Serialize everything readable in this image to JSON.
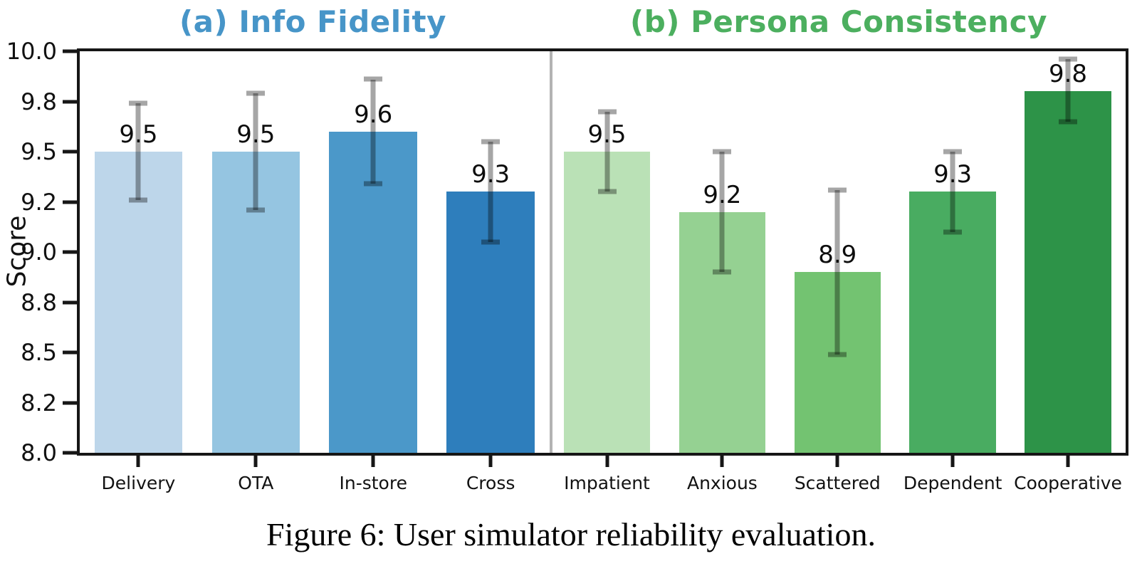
{
  "chart_data": {
    "type": "bar",
    "ylabel": "Score",
    "ylim": [
      8.0,
      10.0
    ],
    "grid": false,
    "legend": false,
    "yticks": {
      "values": [
        10.0,
        9.75,
        9.5,
        9.25,
        9.0,
        8.75,
        8.5,
        8.25,
        8.0
      ],
      "labels": [
        "10.0",
        "9.8",
        "9.5",
        "9.2",
        "9.0",
        "8.8",
        "8.5",
        "8.2",
        "8.0"
      ]
    },
    "error_bar_color": "rgba(0,0,0,0.35)",
    "panels": [
      {
        "title": "(a) Info Fidelity",
        "title_color": "#4795c8",
        "categories": [
          "Delivery",
          "OTA",
          "In-store",
          "Cross"
        ],
        "values": [
          9.5,
          9.5,
          9.6,
          9.3
        ],
        "bar_labels": [
          "9.5",
          "9.5",
          "9.6",
          "9.3"
        ],
        "error_low": [
          9.26,
          9.21,
          9.34,
          9.05
        ],
        "error_high": [
          9.74,
          9.79,
          9.86,
          9.55
        ],
        "bar_colors": [
          "#bdd6ea",
          "#95c5e1",
          "#4b98c9",
          "#2e7ebc"
        ]
      },
      {
        "title": "(b) Persona Consistency",
        "title_color": "#4caf5f",
        "categories": [
          "Impatient",
          "Anxious",
          "Scattered",
          "Dependent",
          "Cooperative"
        ],
        "values": [
          9.5,
          9.2,
          8.9,
          9.3,
          9.8
        ],
        "bar_labels": [
          "9.5",
          "9.2",
          "8.9",
          "9.3",
          "9.8"
        ],
        "error_low": [
          9.3,
          8.9,
          8.49,
          9.1,
          9.65
        ],
        "error_high": [
          9.7,
          9.5,
          9.31,
          9.5,
          9.96
        ],
        "bar_colors": [
          "#bae1b6",
          "#95d192",
          "#73c371",
          "#49ac61",
          "#2d9348"
        ]
      }
    ],
    "caption": "Figure 6: User simulator reliability evaluation."
  }
}
